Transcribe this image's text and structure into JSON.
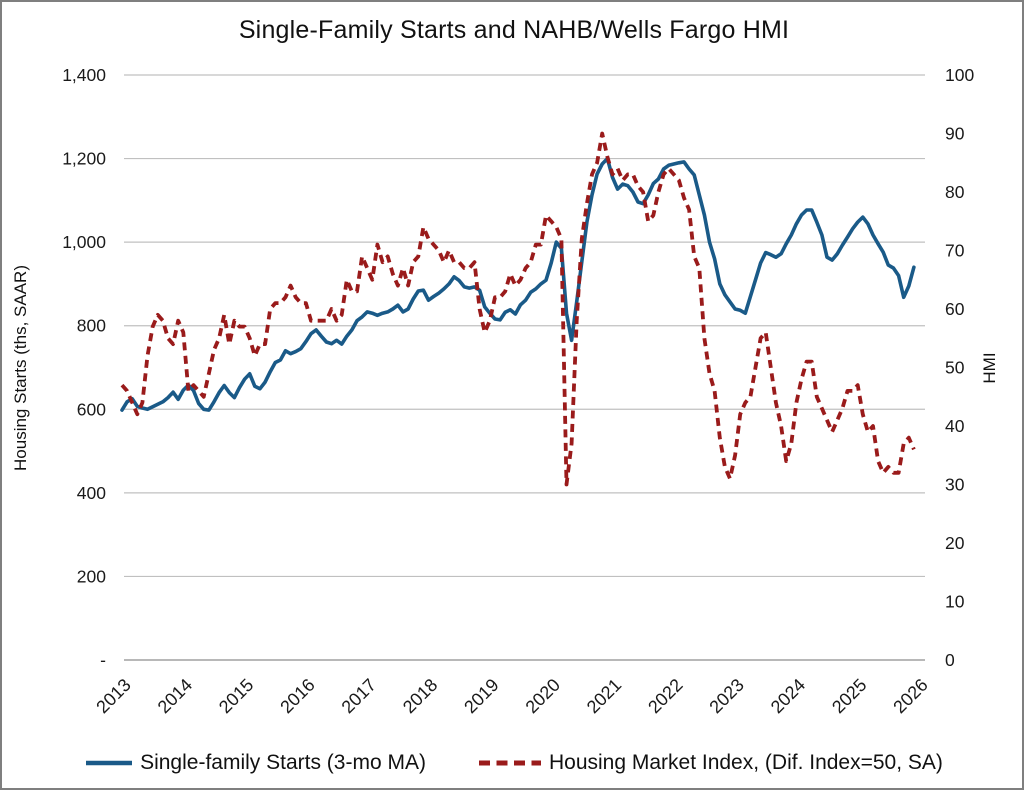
{
  "title": "Single-Family Starts and NAHB/Wells Fargo HMI",
  "colors": {
    "starts_line": "#1A5A88",
    "hmi_line": "#9A1B1B",
    "gridline": "#c0c0c0",
    "axis_line": "#a0a0a0",
    "text": "#1a1a1a"
  },
  "legend": {
    "starts_label": "Single-family Starts (3-mo MA)",
    "hmi_label": "Housing Market Index, (Dif. Index=50, SA)"
  },
  "chart_data": {
    "type": "line",
    "title": "Single-Family Starts and NAHB/Wells Fargo HMI",
    "x_unit": "month",
    "x_start": "2013-01",
    "x_end": "2025-12",
    "x_tick_labels": [
      "2013",
      "2014",
      "2015",
      "2016",
      "2017",
      "2018",
      "2019",
      "2020",
      "2021",
      "2022",
      "2023",
      "2024",
      "2025",
      "2026"
    ],
    "grid": "horizontal",
    "legend_position": "bottom",
    "left_axis": {
      "label": "Housing Starts (ths, SAAR)",
      "range": [
        0,
        1400
      ],
      "tick_values": [
        1400,
        1200,
        1000,
        800,
        600,
        400,
        200,
        0
      ],
      "tick_labels": [
        "1,400",
        "1,200",
        "1,000",
        "800",
        "600",
        "400",
        "200",
        "-"
      ]
    },
    "right_axis": {
      "label": "HMI",
      "range": [
        0,
        100
      ],
      "tick_values": [
        100,
        90,
        80,
        70,
        60,
        50,
        40,
        30,
        20,
        10,
        0
      ],
      "tick_labels": [
        "100",
        "90",
        "80",
        "70",
        "60",
        "50",
        "40",
        "30",
        "20",
        "10",
        "0"
      ]
    },
    "series": [
      {
        "name": "Single-family Starts (3-mo MA)",
        "axis": "left",
        "style": "solid",
        "color": "#1A5A88",
        "values": [
          598,
          618,
          625,
          607,
          603,
          600,
          606,
          612,
          618,
          628,
          641,
          624,
          646,
          658,
          645,
          614,
          600,
          598,
          618,
          640,
          657,
          640,
          628,
          652,
          672,
          685,
          655,
          649,
          665,
          690,
          712,
          718,
          740,
          733,
          738,
          745,
          762,
          781,
          790,
          775,
          761,
          757,
          765,
          756,
          775,
          790,
          812,
          821,
          833,
          830,
          825,
          830,
          833,
          840,
          849,
          833,
          840,
          864,
          883,
          885,
          861,
          870,
          878,
          888,
          900,
          917,
          908,
          893,
          890,
          893,
          885,
          845,
          830,
          816,
          814,
          832,
          838,
          828,
          850,
          861,
          880,
          888,
          900,
          909,
          950,
          1000,
          985,
          830,
          765,
          857,
          953,
          1048,
          1113,
          1163,
          1187,
          1200,
          1155,
          1127,
          1139,
          1135,
          1120,
          1096,
          1092,
          1113,
          1140,
          1151,
          1175,
          1184,
          1187,
          1190,
          1192,
          1175,
          1161,
          1113,
          1065,
          1000,
          960,
          900,
          874,
          857,
          840,
          837,
          830,
          870,
          910,
          950,
          975,
          970,
          964,
          972,
          996,
          1017,
          1044,
          1065,
          1077,
          1077,
          1048,
          1017,
          964,
          957,
          972,
          993,
          1012,
          1032,
          1048,
          1060,
          1044,
          1017,
          996,
          976,
          945,
          938,
          920,
          868,
          895,
          940
        ]
      },
      {
        "name": "Housing Market Index, (Dif. Index=50, SA)",
        "axis": "right",
        "style": "dashed",
        "color": "#9A1B1B",
        "values": [
          47,
          46,
          44,
          42,
          44,
          52,
          57,
          59,
          58,
          55,
          54,
          58,
          56,
          46,
          47,
          46,
          45,
          49,
          53,
          55,
          59,
          54,
          58,
          57,
          57,
          55,
          52,
          54,
          54,
          60,
          61,
          61,
          62,
          64,
          62,
          61,
          61,
          58,
          58,
          58,
          58,
          60,
          58,
          59,
          65,
          63,
          63,
          69,
          67,
          65,
          71,
          68,
          69,
          66,
          64,
          67,
          64,
          68,
          69,
          74,
          72,
          71,
          70,
          68,
          70,
          68,
          68,
          67,
          67,
          68,
          60,
          56,
          58,
          62,
          62,
          63,
          66,
          64,
          65,
          67,
          68,
          71,
          71,
          76,
          75,
          74,
          72,
          30,
          37,
          58,
          72,
          78,
          83,
          85,
          90,
          86,
          83,
          84,
          82,
          83,
          83,
          81,
          80,
          75,
          76,
          80,
          83,
          84,
          83,
          82,
          79,
          77,
          69,
          67,
          55,
          49,
          46,
          38,
          33,
          31,
          35,
          42,
          44,
          45,
          50,
          55,
          56,
          50,
          44,
          40,
          34,
          37,
          44,
          48,
          51,
          51,
          45,
          43,
          41,
          39,
          41,
          43,
          46,
          46,
          47,
          42,
          39,
          40,
          34,
          32,
          33,
          32,
          32,
          37,
          38,
          36
        ]
      }
    ]
  }
}
